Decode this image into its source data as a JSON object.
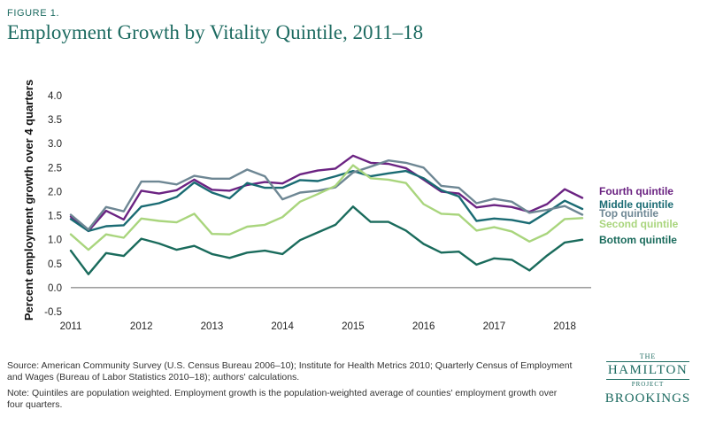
{
  "figure_label": "FIGURE 1.",
  "source_text": "Source: American Community Survey (U.S. Census Bureau 2006–10); Institute for Health Metrics 2010; Quarterly Census of Employment and Wages (Bureau of Labor Statistics 2010–18); authors' calculations.",
  "note_text": "Note: Quintiles are population weighted. Employment growth is the population-weighted average of counties' employment growth over four quarters.",
  "logo": {
    "the": "THE",
    "name": "HAMILTON",
    "project": "PROJECT",
    "org": "BROOKINGS"
  },
  "chart_data": {
    "type": "line",
    "title": "Employment Growth by Vitality Quintile, 2011–18",
    "xlabel": "",
    "ylabel": "Percent employment growth over 4 quarters",
    "ylim": [
      -0.5,
      4.0
    ],
    "yticks": [
      "4.0",
      "3.5",
      "3.0",
      "2.5",
      "2.0",
      "1.5",
      "1.0",
      "0.5",
      "0.0",
      "-0.5"
    ],
    "ytick_values": [
      4.0,
      3.5,
      3.0,
      2.5,
      2.0,
      1.5,
      1.0,
      0.5,
      0.0,
      -0.5
    ],
    "xlim": [
      2011,
      2018.375
    ],
    "xticks": [
      "2011",
      "2012",
      "2013",
      "2014",
      "2015",
      "2016",
      "2017",
      "2018"
    ],
    "xtick_values": [
      2011,
      2012,
      2013,
      2014,
      2015,
      2016,
      2017,
      2018
    ],
    "x": [
      2011,
      2011.25,
      2011.5,
      2011.75,
      2012,
      2012.25,
      2012.5,
      2012.75,
      2013,
      2013.25,
      2013.5,
      2013.75,
      2014,
      2014.25,
      2014.5,
      2014.75,
      2015,
      2015.25,
      2015.5,
      2015.75,
      2016,
      2016.25,
      2016.5,
      2016.75,
      2017,
      2017.25,
      2017.5,
      2017.75,
      2018,
      2018.25
    ],
    "series": [
      {
        "name": "Fourth quintile",
        "color": "#6b2382",
        "values": [
          1.48,
          1.18,
          1.6,
          1.42,
          2.02,
          1.96,
          2.03,
          2.25,
          2.04,
          2.02,
          2.14,
          2.2,
          2.17,
          2.36,
          2.44,
          2.48,
          2.75,
          2.6,
          2.58,
          2.49,
          2.25,
          2.0,
          1.96,
          1.67,
          1.72,
          1.68,
          1.58,
          1.74,
          2.05,
          1.87
        ]
      },
      {
        "name": "Middle quintile",
        "color": "#1a6b73",
        "values": [
          1.43,
          1.18,
          1.28,
          1.3,
          1.69,
          1.76,
          1.89,
          2.19,
          1.98,
          1.86,
          2.18,
          2.08,
          2.08,
          2.24,
          2.22,
          2.32,
          2.43,
          2.32,
          2.38,
          2.43,
          2.28,
          2.03,
          1.9,
          1.39,
          1.44,
          1.41,
          1.34,
          1.57,
          1.81,
          1.64
        ]
      },
      {
        "name": "Top quintile",
        "color": "#6e8794",
        "values": [
          1.52,
          1.21,
          1.68,
          1.59,
          2.21,
          2.21,
          2.15,
          2.33,
          2.27,
          2.27,
          2.46,
          2.32,
          1.84,
          1.98,
          2.02,
          2.09,
          2.4,
          2.52,
          2.65,
          2.6,
          2.5,
          2.12,
          2.08,
          1.76,
          1.85,
          1.79,
          1.56,
          1.62,
          1.7,
          1.52
        ]
      },
      {
        "name": "Second quintile",
        "color": "#a9d57d",
        "values": [
          1.11,
          0.79,
          1.11,
          1.04,
          1.44,
          1.39,
          1.36,
          1.54,
          1.12,
          1.11,
          1.27,
          1.31,
          1.47,
          1.79,
          1.95,
          2.12,
          2.55,
          2.28,
          2.25,
          2.18,
          1.74,
          1.54,
          1.52,
          1.19,
          1.26,
          1.17,
          0.96,
          1.13,
          1.43,
          1.45
        ]
      },
      {
        "name": "Bottom quintile",
        "color": "#1a6b5c",
        "values": [
          0.77,
          0.28,
          0.72,
          0.66,
          1.02,
          0.92,
          0.79,
          0.87,
          0.7,
          0.62,
          0.73,
          0.77,
          0.7,
          0.99,
          1.15,
          1.31,
          1.69,
          1.37,
          1.37,
          1.19,
          0.91,
          0.73,
          0.75,
          0.48,
          0.61,
          0.58,
          0.36,
          0.67,
          0.94,
          1.0
        ]
      }
    ]
  }
}
